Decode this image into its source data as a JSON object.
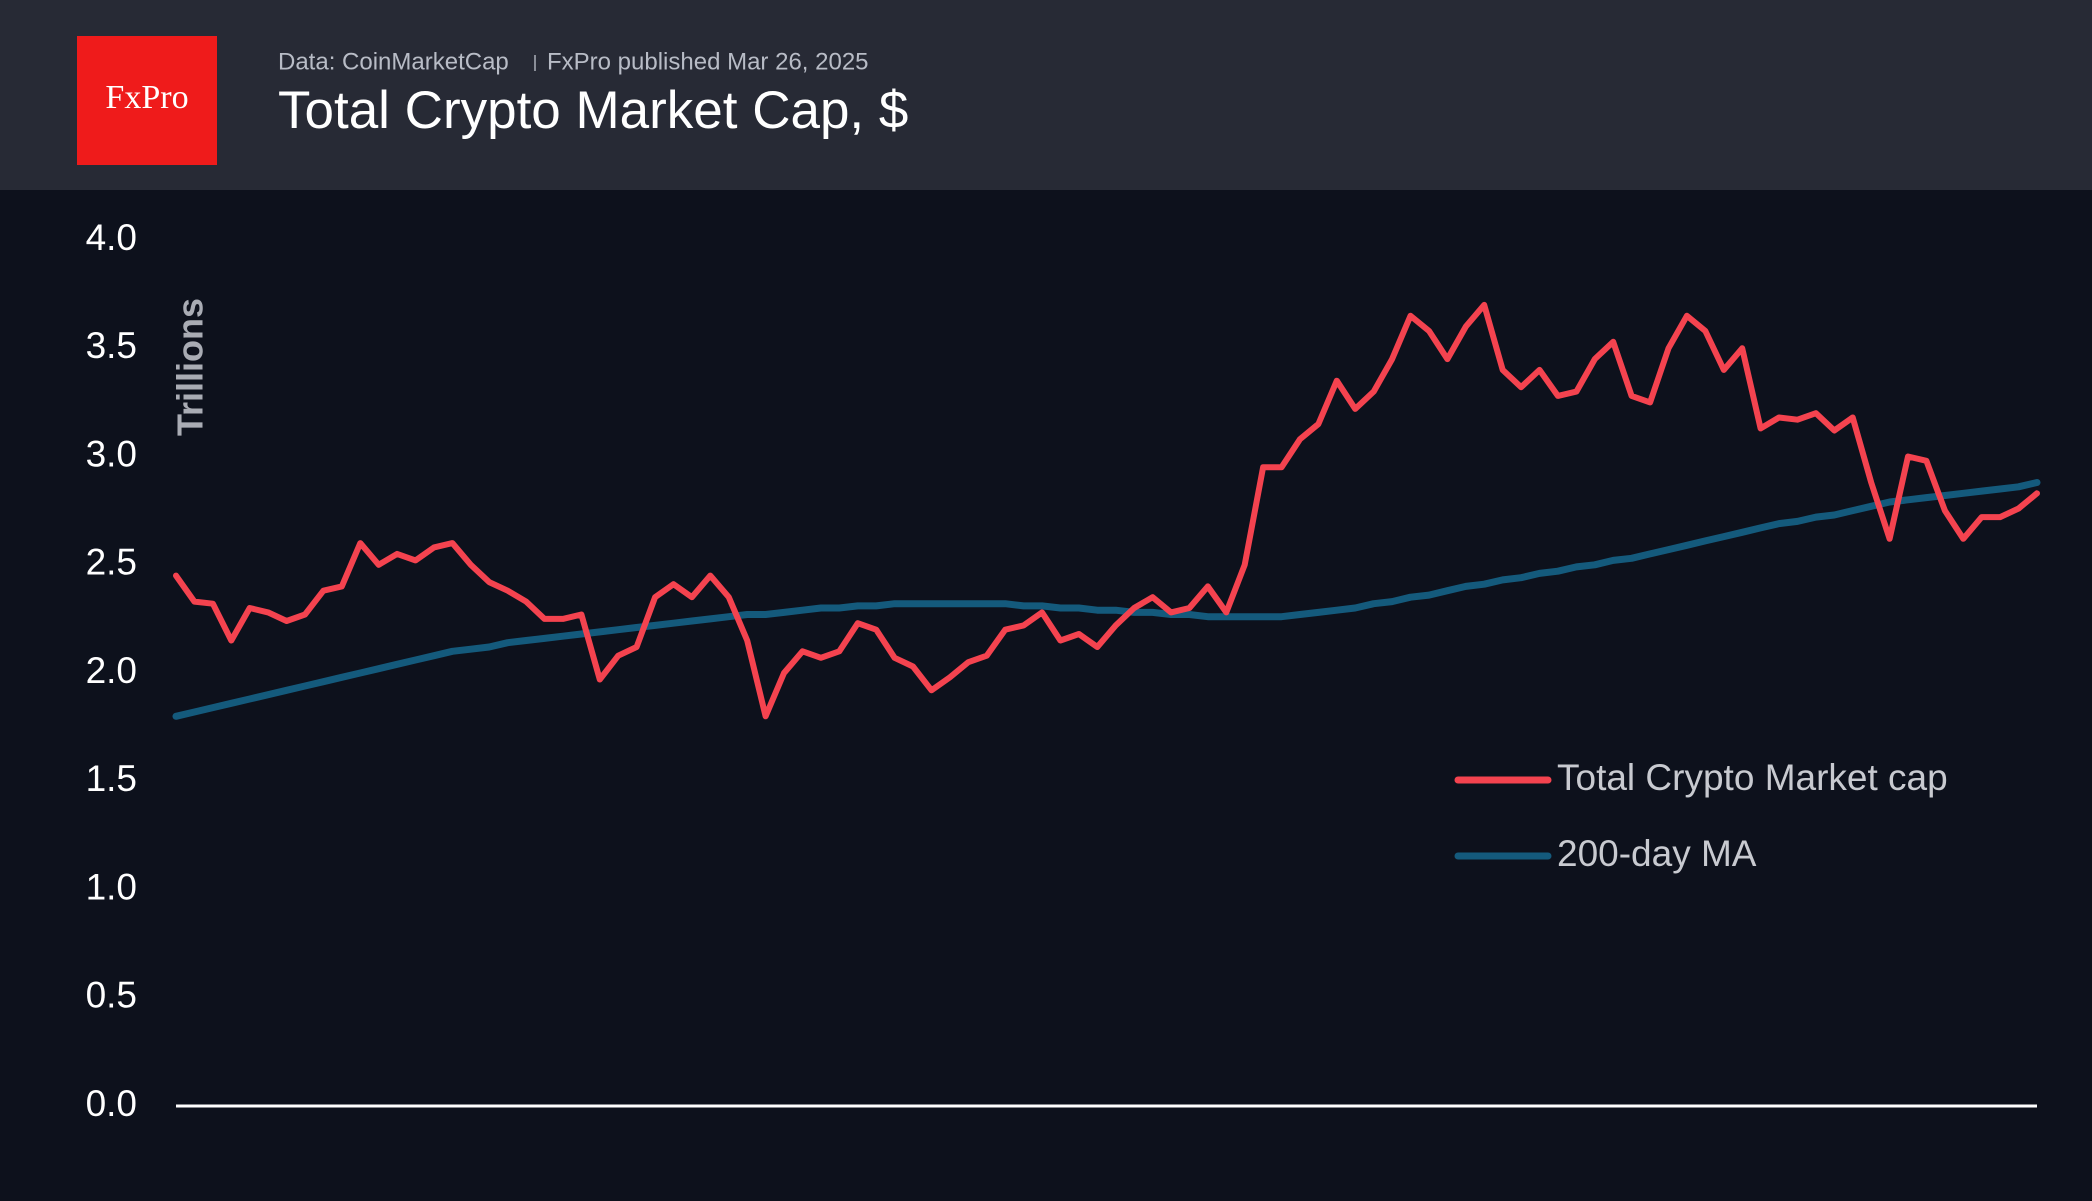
{
  "brand": "FxPro",
  "source": "Data: CoinMarketCap",
  "published": "FxPro published Mar 26, 2025",
  "chart_data": {
    "type": "line",
    "title": "Total Crypto Market Cap, $",
    "ylabel": "Trillions",
    "ylim": [
      0,
      4
    ],
    "yticks": [
      {
        "value": 0,
        "label": "0.0"
      },
      0.5,
      {
        "value": 1,
        "label": "1.0"
      },
      1.5,
      {
        "value": 2,
        "label": "2.0"
      },
      2.5,
      {
        "value": 3,
        "label": "3.0"
      },
      3.5,
      {
        "value": 4,
        "label": "4.0"
      }
    ],
    "legend": "right",
    "series": [
      {
        "name": "Total Crypto Market cap",
        "color": "#f4434f",
        "values": [
          2.45,
          2.33,
          2.32,
          2.15,
          2.3,
          2.28,
          2.24,
          2.27,
          2.38,
          2.4,
          2.6,
          2.5,
          2.55,
          2.52,
          2.58,
          2.6,
          2.5,
          2.42,
          2.38,
          2.33,
          2.25,
          2.25,
          2.27,
          1.97,
          2.08,
          2.12,
          2.35,
          2.41,
          2.35,
          2.45,
          2.35,
          2.15,
          1.8,
          2.0,
          2.1,
          2.07,
          2.1,
          2.23,
          2.2,
          2.07,
          2.03,
          1.92,
          1.98,
          2.05,
          2.08,
          2.2,
          2.22,
          2.28,
          2.15,
          2.18,
          2.12,
          2.22,
          2.3,
          2.35,
          2.28,
          2.3,
          2.4,
          2.28,
          2.5,
          2.95,
          2.95,
          3.08,
          3.15,
          3.35,
          3.22,
          3.3,
          3.45,
          3.65,
          3.58,
          3.45,
          3.6,
          3.7,
          3.4,
          3.32,
          3.4,
          3.28,
          3.3,
          3.45,
          3.53,
          3.28,
          3.25,
          3.5,
          3.65,
          3.58,
          3.4,
          3.5,
          3.13,
          3.18,
          3.17,
          3.2,
          3.12,
          3.18,
          2.88,
          2.62,
          3.0,
          2.98,
          2.75,
          2.62,
          2.72,
          2.72,
          2.76,
          2.83
        ]
      },
      {
        "name": "200-day MA",
        "color": "#145a7c",
        "values": [
          1.8,
          1.82,
          1.84,
          1.86,
          1.88,
          1.9,
          1.92,
          1.94,
          1.96,
          1.98,
          2.0,
          2.02,
          2.04,
          2.06,
          2.08,
          2.1,
          2.11,
          2.12,
          2.14,
          2.15,
          2.16,
          2.17,
          2.18,
          2.19,
          2.2,
          2.21,
          2.22,
          2.23,
          2.24,
          2.25,
          2.26,
          2.27,
          2.27,
          2.28,
          2.29,
          2.3,
          2.3,
          2.31,
          2.31,
          2.32,
          2.32,
          2.32,
          2.32,
          2.32,
          2.32,
          2.32,
          2.31,
          2.31,
          2.3,
          2.3,
          2.29,
          2.29,
          2.28,
          2.28,
          2.27,
          2.27,
          2.26,
          2.26,
          2.26,
          2.26,
          2.26,
          2.27,
          2.28,
          2.29,
          2.3,
          2.32,
          2.33,
          2.35,
          2.36,
          2.38,
          2.4,
          2.41,
          2.43,
          2.44,
          2.46,
          2.47,
          2.49,
          2.5,
          2.52,
          2.53,
          2.55,
          2.57,
          2.59,
          2.61,
          2.63,
          2.65,
          2.67,
          2.69,
          2.7,
          2.72,
          2.73,
          2.75,
          2.77,
          2.79,
          2.8,
          2.81,
          2.82,
          2.83,
          2.84,
          2.85,
          2.86,
          2.88
        ]
      }
    ]
  }
}
